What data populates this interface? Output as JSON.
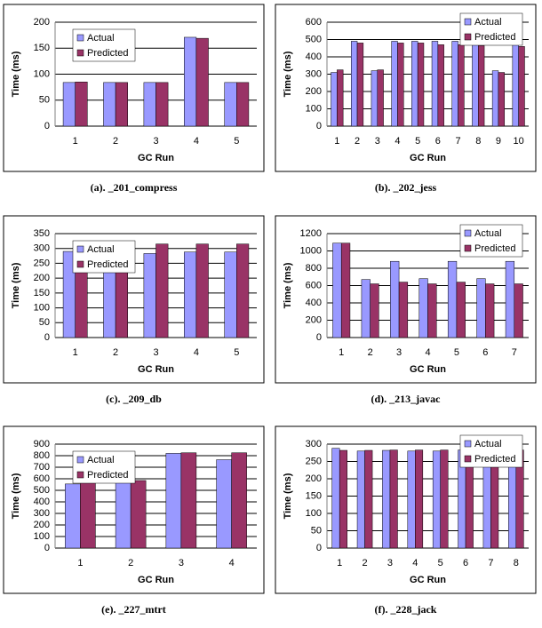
{
  "chart_data": [
    {
      "type": "bar",
      "caption": "(a). _201_compress",
      "xlabel": "GC Run",
      "ylabel": "Time (ms)",
      "legend": "upper center",
      "categories": [
        "1",
        "2",
        "3",
        "4",
        "5"
      ],
      "series": [
        {
          "name": "Actual",
          "color": "#9999ff",
          "values": [
            84,
            84,
            84,
            171,
            84
          ]
        },
        {
          "name": "Predicted",
          "color": "#993366",
          "values": [
            85,
            84,
            84,
            169,
            84
          ]
        }
      ],
      "ylim": [
        0,
        200
      ],
      "yticks": [
        0,
        50,
        100,
        150,
        200
      ],
      "grid": true
    },
    {
      "type": "bar",
      "caption": "(b). _202_jess",
      "xlabel": "GC Run",
      "ylabel": "Time (ms)",
      "legend": "upper right",
      "categories": [
        "1",
        "2",
        "3",
        "4",
        "5",
        "6",
        "7",
        "8",
        "9",
        "10"
      ],
      "series": [
        {
          "name": "Actual",
          "color": "#9999ff",
          "values": [
            310,
            490,
            320,
            490,
            490,
            490,
            490,
            490,
            320,
            490
          ]
        },
        {
          "name": "Predicted",
          "color": "#993366",
          "values": [
            325,
            480,
            325,
            480,
            480,
            470,
            470,
            465,
            310,
            460
          ]
        }
      ],
      "ylim": [
        0,
        600
      ],
      "yticks": [
        0,
        100,
        200,
        300,
        400,
        500,
        600
      ],
      "grid": true
    },
    {
      "type": "bar",
      "caption": "(c). _209_db",
      "xlabel": "GC Run",
      "ylabel": "Time (ms)",
      "legend": "upper center",
      "categories": [
        "1",
        "2",
        "3",
        "4",
        "5"
      ],
      "series": [
        {
          "name": "Actual",
          "color": "#9999ff",
          "values": [
            290,
            288,
            283,
            288,
            288
          ]
        },
        {
          "name": "Predicted",
          "color": "#993366",
          "values": [
            315,
            315,
            315,
            315,
            315
          ]
        }
      ],
      "ylim": [
        0,
        350
      ],
      "yticks": [
        0,
        50,
        100,
        150,
        200,
        250,
        300,
        350
      ],
      "grid": true
    },
    {
      "type": "bar",
      "caption": "(d). _213_javac",
      "xlabel": "GC Run",
      "ylabel": "Time (ms)",
      "legend": "upper right",
      "categories": [
        "1",
        "2",
        "3",
        "4",
        "5",
        "6",
        "7"
      ],
      "series": [
        {
          "name": "Actual",
          "color": "#9999ff",
          "values": [
            1090,
            670,
            880,
            680,
            880,
            680,
            880
          ]
        },
        {
          "name": "Predicted",
          "color": "#993366",
          "values": [
            1090,
            620,
            640,
            620,
            640,
            620,
            620
          ]
        }
      ],
      "ylim": [
        0,
        1200
      ],
      "yticks": [
        0,
        200,
        400,
        600,
        800,
        1000,
        1200
      ],
      "grid": true
    },
    {
      "type": "bar",
      "caption": "(e). _227_mtrt",
      "xlabel": "GC Run",
      "ylabel": "Time (ms)",
      "legend": "upper center",
      "categories": [
        "1",
        "2",
        "3",
        "4"
      ],
      "series": [
        {
          "name": "Actual",
          "color": "#9999ff",
          "values": [
            555,
            570,
            820,
            765
          ]
        },
        {
          "name": "Predicted",
          "color": "#993366",
          "values": [
            565,
            585,
            825,
            825
          ]
        }
      ],
      "ylim": [
        0,
        900
      ],
      "yticks": [
        0,
        100,
        200,
        300,
        400,
        500,
        600,
        700,
        800,
        900
      ],
      "grid": true
    },
    {
      "type": "bar",
      "caption": "(f). _228_jack",
      "xlabel": "GC Run",
      "ylabel": "Time (ms)",
      "legend": "upper right",
      "categories": [
        "1",
        "2",
        "3",
        "4",
        "5",
        "6",
        "7",
        "8"
      ],
      "series": [
        {
          "name": "Actual",
          "color": "#9999ff",
          "values": [
            288,
            280,
            282,
            280,
            280,
            283,
            280,
            287
          ]
        },
        {
          "name": "Predicted",
          "color": "#993366",
          "values": [
            282,
            282,
            283,
            283,
            283,
            283,
            283,
            283
          ]
        }
      ],
      "ylim": [
        0,
        300
      ],
      "yticks": [
        0,
        50,
        100,
        150,
        200,
        250,
        300
      ],
      "grid": true
    }
  ]
}
